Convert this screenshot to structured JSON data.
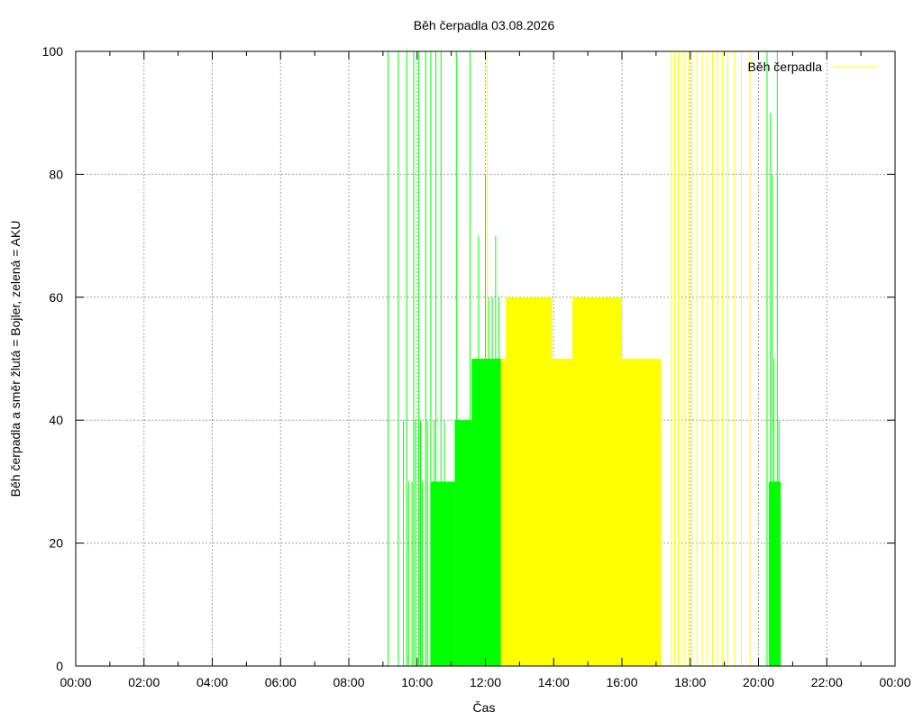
{
  "chart_data": {
    "type": "area",
    "title": "Běh čerpadla 03.08.2026",
    "xlabel": "Čas",
    "ylabel": "Běh čerpadla a směr žlutá = Bojler, zelená = AKU",
    "xlim": [
      0,
      24
    ],
    "ylim": [
      0,
      100
    ],
    "x_ticks": [
      "00:00",
      "02:00",
      "04:00",
      "06:00",
      "08:00",
      "10:00",
      "12:00",
      "14:00",
      "16:00",
      "18:00",
      "20:00",
      "22:00",
      "00:00"
    ],
    "y_ticks": [
      "0",
      "20",
      "40",
      "60",
      "80",
      "100"
    ],
    "grid": true,
    "legend": {
      "position": "top-right",
      "entries": [
        "Běh čerpadla"
      ]
    },
    "colors": {
      "boiler": "#ffff00",
      "aku": "#00ff00",
      "grid": "#a0a0a0",
      "frame": "#000000"
    },
    "series": [
      {
        "name": "Běh čerpadla",
        "color": "#ffff00",
        "spikes": [
          [
            12.05,
            100
          ],
          [
            17.45,
            100
          ],
          [
            17.55,
            100
          ],
          [
            17.65,
            100
          ],
          [
            17.75,
            100
          ],
          [
            17.85,
            100
          ],
          [
            17.95,
            100
          ],
          [
            18.05,
            100
          ],
          [
            18.2,
            100
          ],
          [
            18.35,
            100
          ],
          [
            18.5,
            100
          ],
          [
            18.65,
            100
          ],
          [
            18.8,
            100
          ],
          [
            18.95,
            100
          ],
          [
            19.1,
            100
          ],
          [
            19.3,
            100
          ],
          [
            19.5,
            100
          ],
          [
            19.75,
            100
          ]
        ],
        "spans": [
          {
            "from": 12.45,
            "to": 17.15,
            "value": 50
          },
          {
            "from": 12.6,
            "to": 13.95,
            "value": 60
          },
          {
            "from": 14.55,
            "to": 16.0,
            "value": 60
          }
        ]
      },
      {
        "color": "#00ff00",
        "spikes": [
          [
            9.15,
            100
          ],
          [
            9.45,
            100
          ],
          [
            9.6,
            40
          ],
          [
            9.7,
            100
          ],
          [
            9.75,
            30
          ],
          [
            9.85,
            30
          ],
          [
            9.9,
            100
          ],
          [
            9.95,
            40
          ],
          [
            10.05,
            100
          ],
          [
            10.1,
            40
          ],
          [
            10.15,
            30
          ],
          [
            10.25,
            100
          ],
          [
            10.3,
            40
          ],
          [
            10.4,
            100
          ],
          [
            10.5,
            40
          ],
          [
            10.55,
            100
          ],
          [
            10.65,
            30
          ],
          [
            10.7,
            100
          ],
          [
            10.8,
            40
          ],
          [
            10.9,
            30
          ],
          [
            11.05,
            30
          ],
          [
            11.15,
            100
          ],
          [
            11.25,
            40
          ],
          [
            11.45,
            40
          ],
          [
            11.55,
            100
          ],
          [
            11.75,
            50
          ],
          [
            11.8,
            70
          ],
          [
            11.9,
            50
          ],
          [
            12.0,
            80
          ],
          [
            12.1,
            60
          ],
          [
            12.2,
            60
          ],
          [
            12.3,
            70
          ],
          [
            12.4,
            60
          ],
          [
            20.25,
            100
          ],
          [
            20.35,
            90
          ],
          [
            20.4,
            80
          ],
          [
            20.45,
            50
          ],
          [
            20.5,
            30
          ],
          [
            20.55,
            100
          ],
          [
            20.6,
            40
          ]
        ],
        "spans": [
          {
            "from": 10.4,
            "to": 11.1,
            "value": 30
          },
          {
            "from": 11.1,
            "to": 11.6,
            "value": 40
          },
          {
            "from": 11.6,
            "to": 12.45,
            "value": 50
          },
          {
            "from": 20.3,
            "to": 20.65,
            "value": 30
          }
        ]
      }
    ]
  }
}
